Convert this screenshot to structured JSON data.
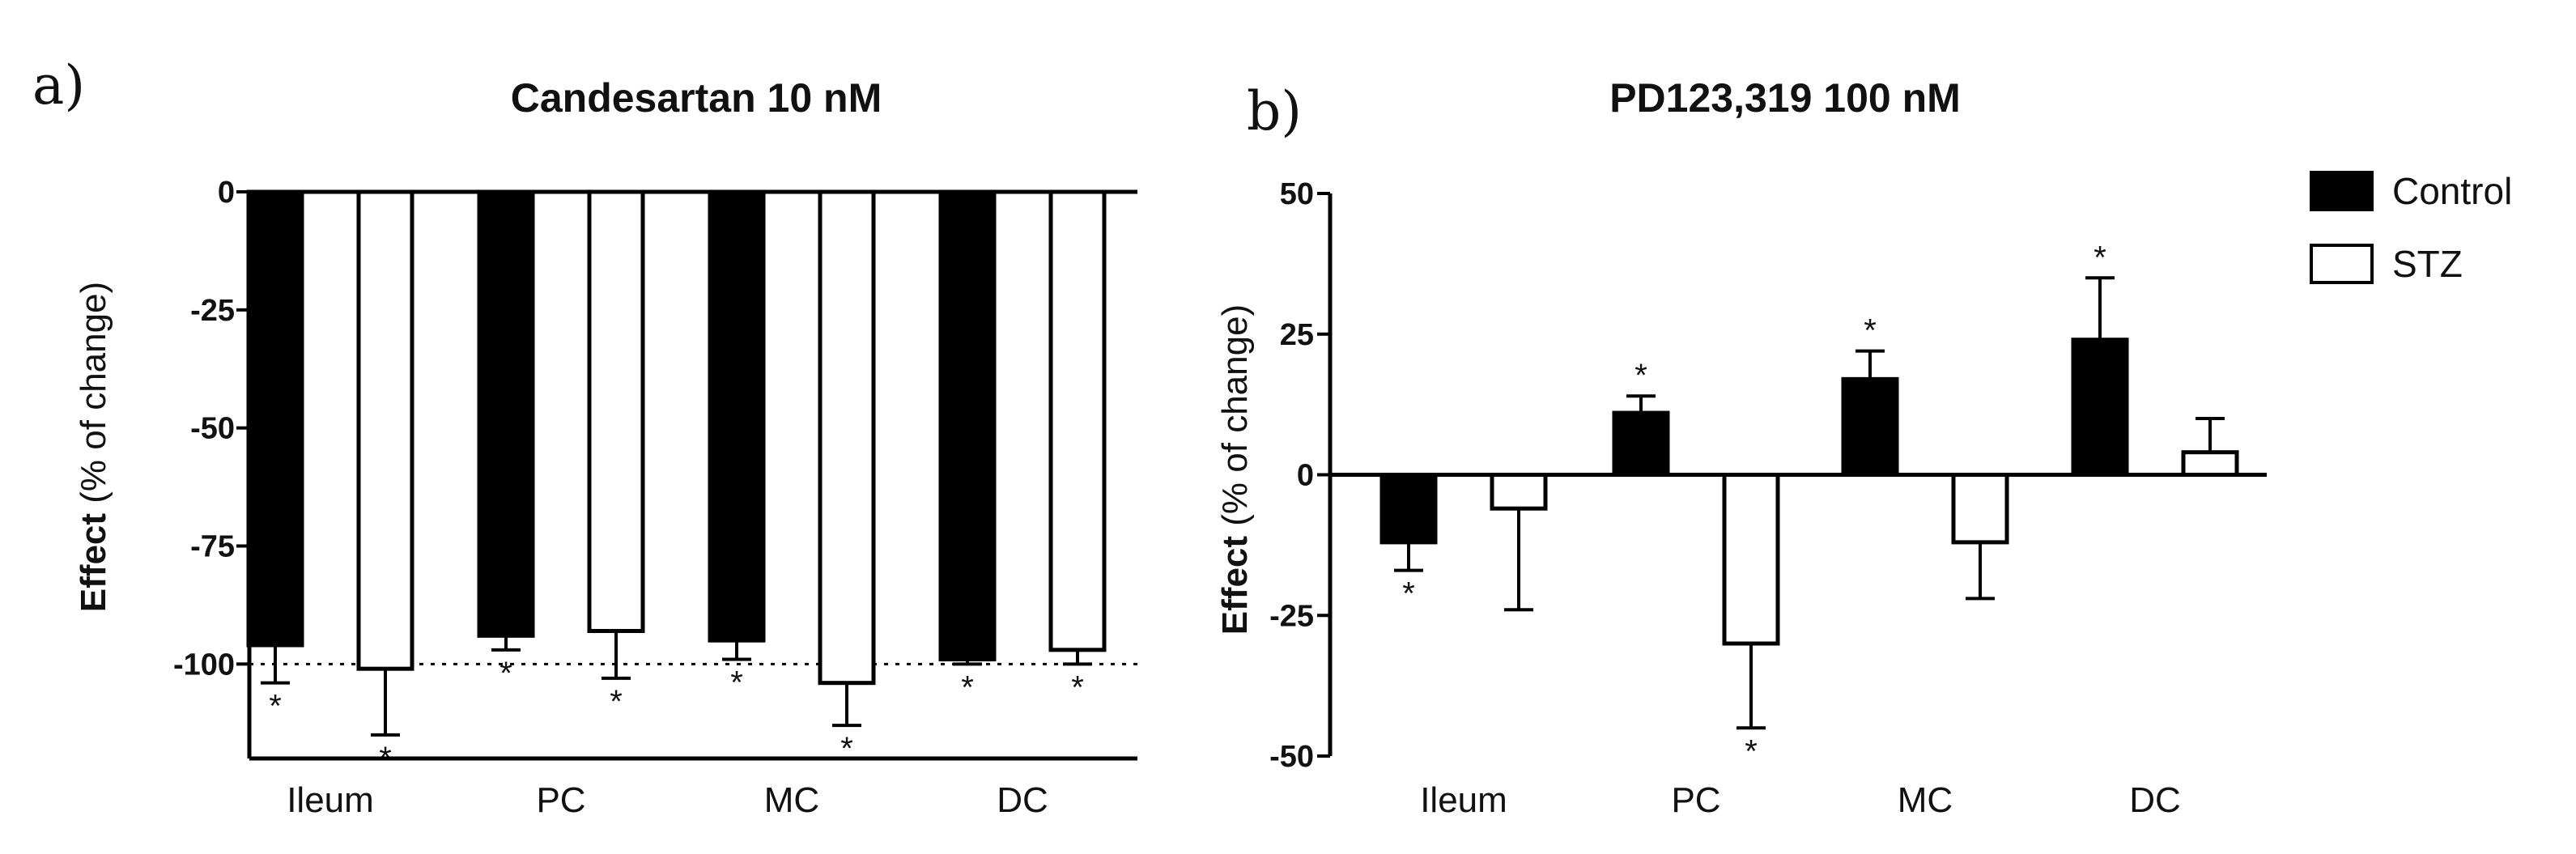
{
  "chart_data": [
    {
      "panel": "a)",
      "type": "bar",
      "title": "Candesartan 10 nM",
      "ylabel_bold": "Effect",
      "ylabel_rest": "(% of change)",
      "ylim": [
        -120,
        0
      ],
      "yticks": [
        0,
        -25,
        -50,
        -75,
        -100
      ],
      "reference_line": -100,
      "categories": [
        "Ileum",
        "PC",
        "MC",
        "DC"
      ],
      "series": [
        {
          "name": "Control",
          "color": "#000000",
          "values": [
            -96,
            -94,
            -95,
            -99
          ],
          "errors": [
            8,
            3,
            4,
            1
          ],
          "significance": [
            "*",
            "*",
            "*",
            "*"
          ]
        },
        {
          "name": "STZ",
          "color": "#ffffff",
          "values": [
            -101,
            -93,
            -104,
            -97
          ],
          "errors": [
            14,
            10,
            9,
            3
          ],
          "significance": [
            "*",
            "*",
            "*",
            "*"
          ]
        }
      ]
    },
    {
      "panel": "b)",
      "type": "bar",
      "title": "PD123,319 100 nM",
      "ylabel_bold": "Effect",
      "ylabel_rest": "(% of change)",
      "ylim": [
        -50,
        50
      ],
      "yticks": [
        50,
        25,
        0,
        -25,
        -50
      ],
      "categories": [
        "Ileum",
        "PC",
        "MC",
        "DC"
      ],
      "series": [
        {
          "name": "Control",
          "color": "#000000",
          "values": [
            -12,
            11,
            17,
            24
          ],
          "errors": [
            5,
            3,
            5,
            11
          ],
          "significance": [
            "*",
            "*",
            "*",
            "*"
          ]
        },
        {
          "name": "STZ",
          "color": "#ffffff",
          "values": [
            -6,
            -30,
            -12,
            4
          ],
          "errors": [
            18,
            15,
            10,
            6
          ],
          "significance": [
            "",
            "*",
            "",
            ""
          ]
        }
      ]
    }
  ],
  "legend": [
    {
      "label": "Control",
      "fill": "#000000"
    },
    {
      "label": "STZ",
      "fill": "#ffffff"
    }
  ]
}
